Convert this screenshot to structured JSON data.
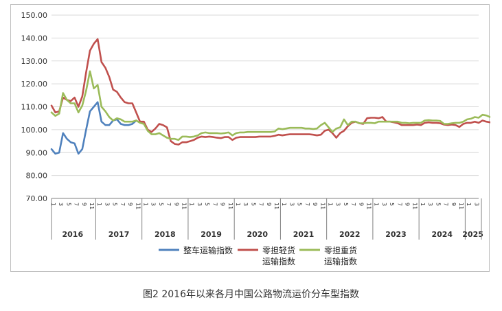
{
  "caption": "图2 2016年以来各月中国公路物流运价分车型指数",
  "chart_data": {
    "type": "line",
    "title": "",
    "xlabel": "",
    "ylabel": "",
    "ylim": [
      70,
      150
    ],
    "yticks": [
      "70.00",
      "80.00",
      "90.00",
      "100.00",
      "110.00",
      "120.00",
      "130.00",
      "140.00",
      "150.00"
    ],
    "grid": true,
    "legend_position": "bottom",
    "x_year_labels": [
      "2016",
      "2017",
      "2018",
      "2019",
      "2020",
      "2021",
      "2022",
      "2023",
      "2024",
      "2025"
    ],
    "x_month_labels": [
      "1",
      "3",
      "5",
      "7",
      "9",
      "11",
      "1",
      "3",
      "5",
      "7",
      "9",
      "11",
      "1",
      "3",
      "5",
      "7",
      "9",
      "11",
      "1",
      "3",
      "5",
      "7",
      "9",
      "11",
      "1",
      "3",
      "5",
      "7",
      "9",
      "11",
      "1",
      "3",
      "5",
      "7",
      "9",
      "11",
      "1",
      "3",
      "5",
      "7",
      "9",
      "11",
      "1",
      "3",
      "5",
      "7",
      "9",
      "11",
      "1",
      "3",
      "5",
      "7",
      "9",
      "11",
      "1",
      "3"
    ],
    "series": [
      {
        "name": "整车运输指数",
        "color": "#4f81bd",
        "start_index": 0,
        "values": [
          91.5,
          89.5,
          90.0,
          98.5,
          96.0,
          94.5,
          94.0,
          89.5,
          91.5,
          100.0,
          108.0,
          110.0,
          112.0,
          103.5,
          102.0,
          102.0,
          104.0,
          104.5,
          102.5,
          102.0,
          102.0,
          102.5,
          104.0
        ]
      },
      {
        "name": "零担轻货\n运输指数",
        "color": "#c0504d",
        "start_index": 0,
        "values": [
          110.5,
          107.5,
          108.0,
          114.0,
          113.0,
          112.5,
          114.0,
          110.0,
          114.5,
          125.0,
          134.5,
          137.5,
          139.5,
          129.5,
          127.0,
          123.0,
          117.5,
          116.5,
          114.0,
          112.0,
          111.5,
          111.5,
          107.5,
          103.5,
          103.5,
          100.0,
          99.0,
          100.5,
          102.5,
          102.0,
          101.0,
          95.0,
          93.8,
          93.5,
          94.5,
          94.5,
          95.0,
          95.5,
          96.5,
          97.0,
          96.8,
          97.0,
          96.8,
          96.5,
          96.3,
          96.8,
          96.8,
          95.5,
          96.5,
          96.8,
          96.8,
          96.8,
          96.8,
          96.8,
          97.0,
          97.0,
          97.0,
          97.0,
          97.3,
          97.8,
          97.5,
          97.8,
          98.0,
          98.0,
          98.0,
          98.0,
          98.0,
          98.0,
          97.8,
          97.5,
          97.8,
          99.5,
          100.0,
          98.5,
          96.5,
          98.5,
          99.5,
          101.5,
          103.0,
          103.5,
          102.8,
          102.5,
          105.0,
          105.2,
          105.2,
          105.0,
          105.5,
          103.5,
          103.5,
          103.2,
          102.8,
          102.0,
          102.0,
          102.0,
          102.0,
          102.2,
          102.0,
          103.0,
          103.2,
          103.0,
          103.0,
          102.8,
          102.2,
          102.0,
          102.2,
          102.0,
          101.2,
          102.5,
          103.0,
          103.0,
          103.5,
          103.0,
          104.0,
          103.5,
          103.2,
          103.2,
          103.0
        ],
        "_comment": "values read off the chart from Jan 2016 to Mar 2025"
      },
      {
        "name": "零担重货\n运输指数",
        "color": "#9bbb59",
        "start_index": 0,
        "values": [
          107.5,
          106.0,
          107.0,
          116.0,
          113.0,
          111.5,
          111.5,
          107.5,
          110.5,
          117.0,
          125.5,
          118.0,
          119.5,
          110.0,
          108.0,
          105.5,
          104.0,
          105.0,
          104.5,
          103.5,
          103.5,
          103.5,
          104.0,
          103.0,
          102.5,
          99.5,
          98.0,
          98.0,
          98.5,
          97.5,
          96.5,
          96.0,
          96.0,
          95.5,
          97.0,
          97.0,
          96.8,
          97.0,
          97.5,
          98.5,
          98.8,
          98.5,
          98.5,
          98.5,
          98.3,
          98.5,
          98.8,
          97.5,
          98.5,
          98.8,
          98.8,
          99.0,
          99.0,
          99.0,
          99.0,
          99.0,
          99.0,
          99.0,
          99.2,
          100.5,
          100.2,
          100.5,
          100.8,
          100.8,
          100.8,
          100.8,
          100.5,
          100.5,
          100.3,
          100.5,
          102.0,
          103.0,
          101.0,
          99.0,
          100.5,
          101.0,
          104.5,
          102.0,
          103.5,
          103.5,
          102.8,
          102.8,
          103.0,
          103.0,
          102.8,
          103.5,
          103.5,
          103.5,
          103.5,
          103.5,
          103.5,
          103.0,
          103.0,
          102.8,
          103.0,
          103.0,
          103.0,
          104.0,
          104.2,
          104.0,
          104.0,
          103.8,
          102.5,
          102.5,
          102.8,
          103.0,
          103.0,
          103.5,
          104.5,
          104.8,
          105.5,
          105.2,
          106.5,
          106.2,
          105.5,
          105.5,
          105.8
        ]
      }
    ],
    "legend": [
      {
        "label_line1": "整车运输指数",
        "label_line2": "",
        "color": "#4f81bd"
      },
      {
        "label_line1": "零担轻货",
        "label_line2": "运输指数",
        "color": "#c0504d"
      },
      {
        "label_line1": "零担重货",
        "label_line2": "运输指数",
        "color": "#9bbb59"
      }
    ]
  }
}
